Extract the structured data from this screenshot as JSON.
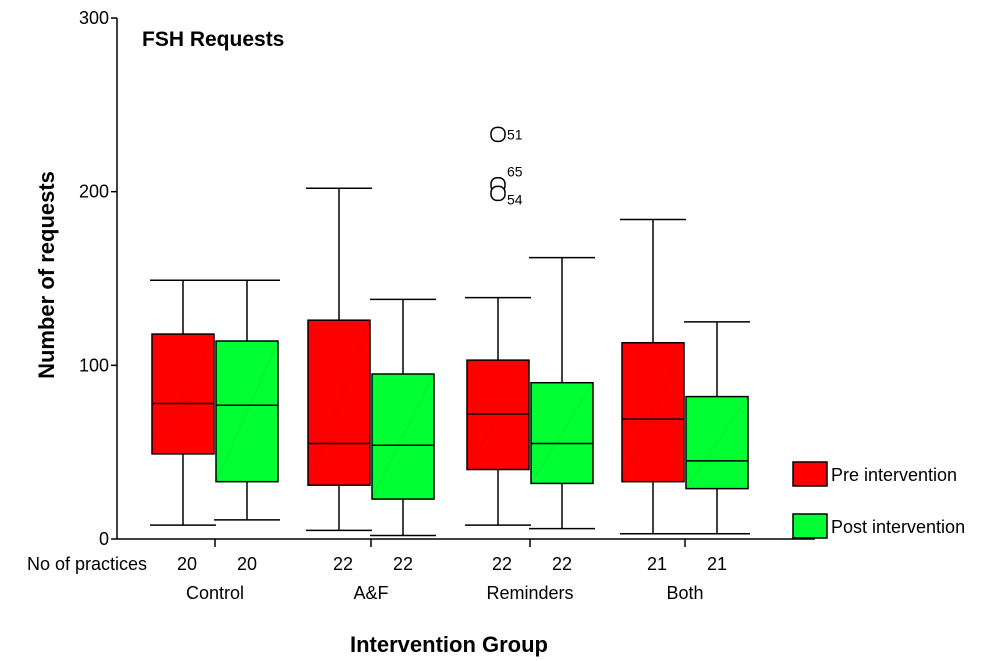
{
  "chart_data": {
    "type": "box",
    "title": "FSH Requests",
    "xlabel": "Intervention Group",
    "ylabel": "Number of requests",
    "ylim": [
      0,
      300
    ],
    "yticks": [
      0,
      100,
      200,
      300
    ],
    "practices_label": "No of practices",
    "groups": [
      "Control",
      "A&F",
      "Reminders",
      "Both"
    ],
    "legend": {
      "placement": "right",
      "items": [
        {
          "label": "Pre intervention",
          "color": "#ff0000"
        },
        {
          "label": "Post intervention",
          "color": "#00ff33"
        }
      ]
    },
    "series": [
      {
        "name": "Pre intervention",
        "color": "#ff0000",
        "boxes": [
          {
            "group": "Control",
            "n": "20",
            "min": 8,
            "q1": 49,
            "median": 78,
            "q3": 118,
            "max": 149,
            "outliers": []
          },
          {
            "group": "A&F",
            "n": "22",
            "min": 5,
            "q1": 31,
            "median": 55,
            "q3": 126,
            "max": 202,
            "outliers": []
          },
          {
            "group": "Reminders",
            "n": "22",
            "min": 8,
            "q1": 40,
            "median": 72,
            "q3": 103,
            "max": 139,
            "outliers": [
              {
                "value": 233,
                "label": "51"
              },
              {
                "value": 204,
                "label": "65"
              },
              {
                "value": 199,
                "label": "54"
              }
            ]
          },
          {
            "group": "Both",
            "n": "21",
            "min": 3,
            "q1": 33,
            "median": 69,
            "q3": 113,
            "max": 184,
            "outliers": []
          }
        ]
      },
      {
        "name": "Post intervention",
        "color": "#00ff33",
        "boxes": [
          {
            "group": "Control",
            "n": "20",
            "min": 11,
            "q1": 33,
            "median": 77,
            "q3": 114,
            "max": 149,
            "outliers": []
          },
          {
            "group": "A&F",
            "n": "22",
            "min": 2,
            "q1": 23,
            "median": 54,
            "q3": 95,
            "max": 138,
            "outliers": []
          },
          {
            "group": "Reminders",
            "n": "22",
            "min": 6,
            "q1": 32,
            "median": 55,
            "q3": 90,
            "max": 162,
            "outliers": []
          },
          {
            "group": "Both",
            "n": "21",
            "min": 3,
            "q1": 29,
            "median": 45,
            "q3": 82,
            "max": 125,
            "outliers": []
          }
        ]
      }
    ]
  }
}
